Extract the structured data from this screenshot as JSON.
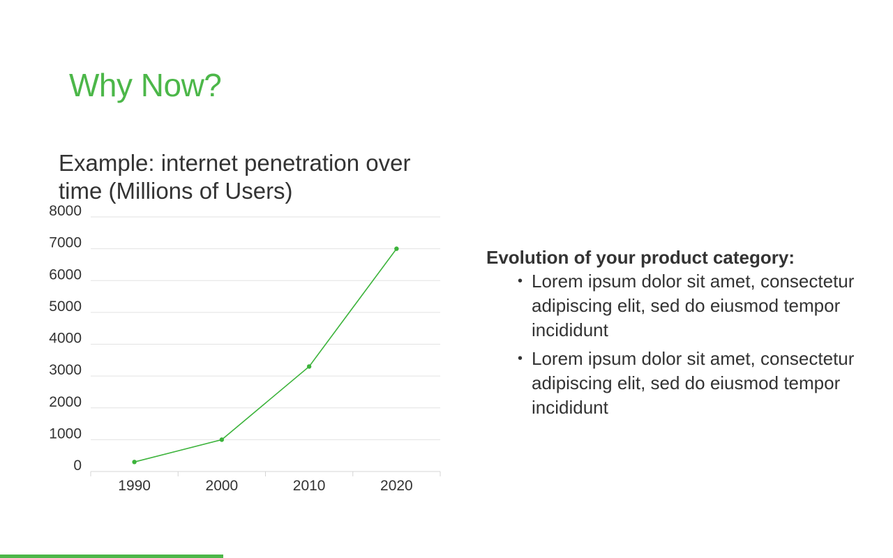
{
  "slide": {
    "title": "Why Now?",
    "accent_color": "#4cb749",
    "text_color": "#333333"
  },
  "panel": {
    "heading": "Evolution of your product category:",
    "bullets": [
      "Lorem ipsum dolor sit amet, consectetur adipiscing elit, sed do eiusmod tempor incididunt",
      "Lorem ipsum dolor sit amet, consectetur adipiscing elit, sed do eiusmod tempor incididunt"
    ]
  },
  "chart_data": {
    "type": "line",
    "title": "Example: internet penetration over time (Millions of Users)",
    "categories": [
      "1990",
      "2000",
      "2010",
      "2020"
    ],
    "series": [
      {
        "values": [
          300,
          1000,
          3300,
          7000
        ],
        "color": "#3cb33b"
      }
    ],
    "ylim": [
      0,
      8000
    ],
    "yticks": [
      0,
      1000,
      2000,
      3000,
      4000,
      5000,
      6000,
      7000,
      8000
    ],
    "grid": true,
    "legend": "none"
  }
}
